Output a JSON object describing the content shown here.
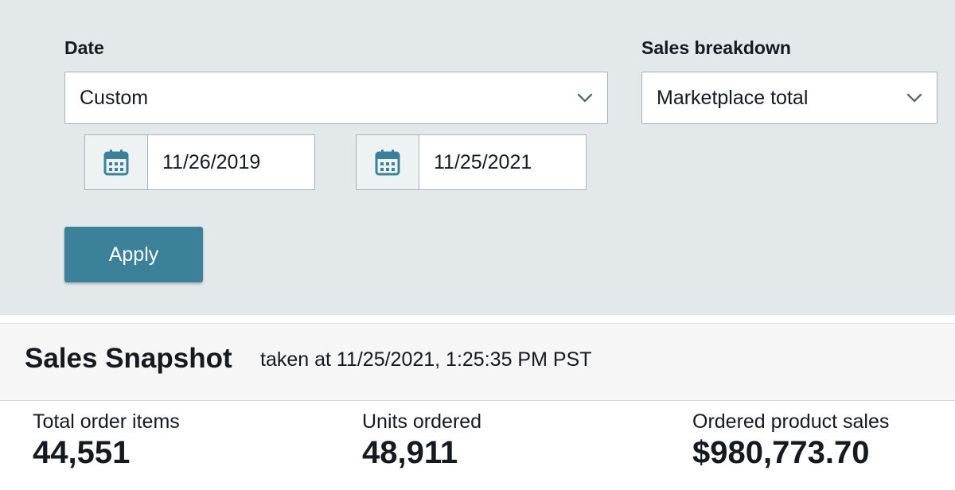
{
  "filters": {
    "date_label": "Date",
    "date_select_value": "Custom",
    "start_date": "11/26/2019",
    "end_date": "11/25/2021",
    "breakdown_label": "Sales breakdown",
    "breakdown_select_value": "Marketplace total",
    "apply_label": "Apply"
  },
  "snapshot": {
    "title": "Sales Snapshot",
    "timestamp": "taken at 11/25/2021, 1:25:35 PM PST",
    "metrics": [
      {
        "label": "Total order items",
        "value": "44,551"
      },
      {
        "label": "Units ordered",
        "value": "48,911"
      },
      {
        "label": "Ordered product sales",
        "value": "$980,773.70"
      }
    ]
  },
  "colors": {
    "filter_panel_bg": "#e3e9ea",
    "apply_button": "#3a8199",
    "calendar_icon": "#3a8199"
  }
}
